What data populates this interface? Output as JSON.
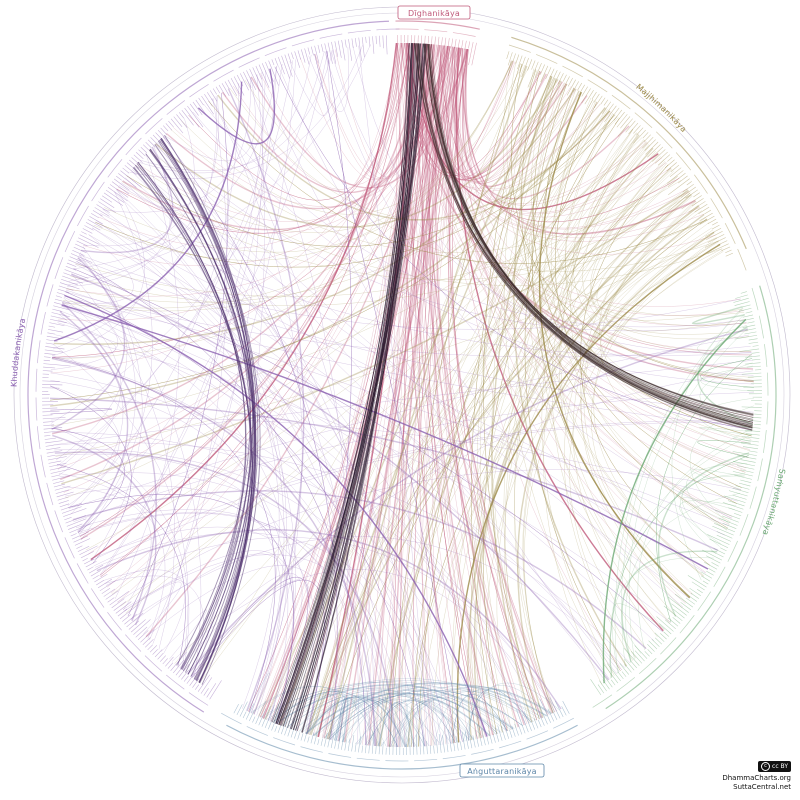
{
  "nikayas": [
    {
      "id": "dn",
      "label": "Dīghanikāya",
      "color": "#c05a7a"
    },
    {
      "id": "mn",
      "label": "Majjhimanikāya",
      "color": "#9c8a48"
    },
    {
      "id": "sn",
      "label": "Saṁyuttanikāya",
      "color": "#6aa872"
    },
    {
      "id": "an",
      "label": "Aṅguttaranikāya",
      "color": "#5d86a8"
    },
    {
      "id": "kn",
      "label": "Khuddakanikāya",
      "color": "#8a5fb0"
    }
  ],
  "footer": {
    "license_badge": "cc BY",
    "site1": "DhammaCharts.org",
    "site2": "SuttaCentral.net"
  }
}
